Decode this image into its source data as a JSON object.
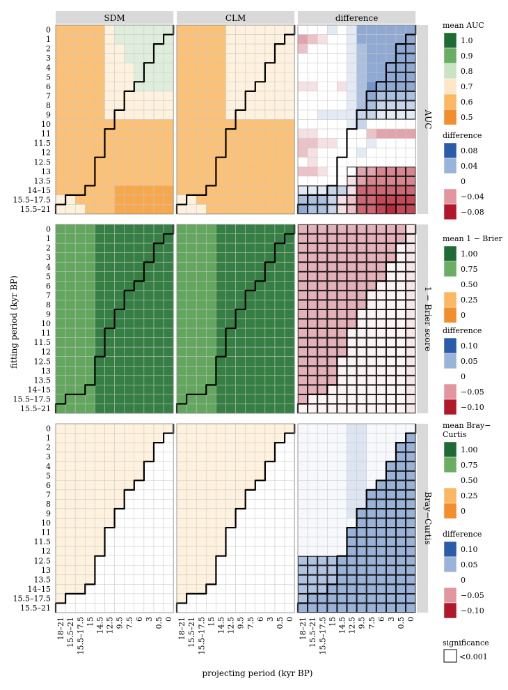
{
  "chart_data": {
    "type": "heatmap",
    "xlabel": "projecting period (kyr BP)",
    "ylabel": "fitting period (kyr BP)",
    "x_categories": [
      "18–21",
      "15.5–21",
      "15.5–17.5",
      "15",
      "14.5",
      "12.5",
      "9.5",
      "7.5",
      "6",
      "3",
      "0.5",
      "0"
    ],
    "y_categories": [
      "0",
      "1",
      "2",
      "3",
      "4",
      "5",
      "6",
      "7",
      "8",
      "9",
      "10",
      "11",
      "11.5",
      "12",
      "12.5",
      "13",
      "13.5",
      "14–15",
      "15.5–17.5",
      "15.5–21"
    ],
    "columns": [
      "SDM",
      "CLM",
      "difference"
    ],
    "rows": [
      {
        "label": "AUC",
        "mean_title": "mean AUC",
        "mean_ticks": [
          "1.0",
          "0.9",
          "0.8",
          "0.7",
          "0.6",
          "0.5"
        ],
        "diff_ticks": [
          "0.08",
          "0.04",
          "0",
          "−0.04",
          "−0.08"
        ]
      },
      {
        "label": "1 − Brier score",
        "mean_title": "mean 1 − Brier",
        "mean_ticks": [
          "1.00",
          "0.75",
          "0.50",
          "0.25",
          "0"
        ],
        "diff_ticks": [
          "0.10",
          "0.05",
          "0",
          "−0.05",
          "−0.10"
        ]
      },
      {
        "label": "Bray−Curtis",
        "mean_title": "mean Bray−\nCurtis",
        "mean_ticks": [
          "1.00",
          "0.75",
          "0.50",
          "0.25",
          "0"
        ],
        "diff_ticks": [
          "0.10",
          "0.05",
          "0",
          "−0.05",
          "−0.10"
        ]
      }
    ],
    "significance": {
      "title": "significance",
      "label": "<0.001"
    },
    "diagonal_boundary": [
      12,
      11,
      10,
      10,
      9,
      9,
      8,
      7,
      7,
      6,
      6,
      5,
      5,
      5,
      4,
      4,
      4,
      3,
      1,
      0
    ],
    "values": {
      "AUC": {
        "SDM": [
          [
            0.6,
            0.6,
            0.6,
            0.6,
            0.6,
            0.7,
            0.8,
            0.8,
            0.8,
            0.8,
            0.8,
            0.8
          ],
          [
            0.6,
            0.6,
            0.6,
            0.6,
            0.6,
            0.7,
            0.8,
            0.8,
            0.8,
            0.8,
            0.8,
            0.8
          ],
          [
            0.6,
            0.6,
            0.6,
            0.6,
            0.6,
            0.7,
            0.7,
            0.8,
            0.8,
            0.8,
            0.8,
            0.8
          ],
          [
            0.6,
            0.6,
            0.6,
            0.6,
            0.6,
            0.7,
            0.7,
            0.8,
            0.8,
            0.8,
            0.8,
            0.8
          ],
          [
            0.6,
            0.6,
            0.6,
            0.6,
            0.6,
            0.7,
            0.7,
            0.7,
            0.8,
            0.8,
            0.8,
            0.8
          ],
          [
            0.6,
            0.6,
            0.6,
            0.6,
            0.6,
            0.7,
            0.7,
            0.7,
            0.8,
            0.8,
            0.8,
            0.8
          ],
          [
            0.6,
            0.6,
            0.6,
            0.6,
            0.6,
            0.7,
            0.7,
            0.7,
            0.8,
            0.8,
            0.8,
            0.8
          ],
          [
            0.6,
            0.6,
            0.6,
            0.6,
            0.6,
            0.7,
            0.7,
            0.7,
            0.7,
            0.7,
            0.7,
            0.7
          ],
          [
            0.6,
            0.6,
            0.6,
            0.6,
            0.6,
            0.7,
            0.7,
            0.7,
            0.7,
            0.7,
            0.7,
            0.7
          ],
          [
            0.6,
            0.6,
            0.6,
            0.6,
            0.6,
            0.7,
            0.7,
            0.7,
            0.7,
            0.7,
            0.7,
            0.7
          ],
          [
            0.6,
            0.6,
            0.6,
            0.6,
            0.6,
            0.6,
            0.6,
            0.6,
            0.6,
            0.6,
            0.6,
            0.6
          ],
          [
            0.6,
            0.6,
            0.6,
            0.6,
            0.6,
            0.6,
            0.6,
            0.6,
            0.6,
            0.6,
            0.6,
            0.6
          ],
          [
            0.6,
            0.6,
            0.6,
            0.6,
            0.6,
            0.6,
            0.6,
            0.6,
            0.6,
            0.6,
            0.6,
            0.6
          ],
          [
            0.6,
            0.6,
            0.6,
            0.6,
            0.6,
            0.6,
            0.6,
            0.6,
            0.6,
            0.6,
            0.6,
            0.6
          ],
          [
            0.6,
            0.6,
            0.6,
            0.6,
            0.6,
            0.6,
            0.6,
            0.6,
            0.6,
            0.6,
            0.6,
            0.6
          ],
          [
            0.6,
            0.6,
            0.6,
            0.6,
            0.6,
            0.6,
            0.6,
            0.6,
            0.6,
            0.6,
            0.6,
            0.6
          ],
          [
            0.6,
            0.6,
            0.6,
            0.6,
            0.6,
            0.6,
            0.6,
            0.6,
            0.6,
            0.6,
            0.6,
            0.6
          ],
          [
            0.6,
            0.6,
            0.6,
            0.6,
            0.6,
            0.6,
            0.55,
            0.55,
            0.55,
            0.55,
            0.55,
            0.55
          ],
          [
            0.7,
            0.7,
            0.6,
            0.6,
            0.6,
            0.6,
            0.55,
            0.55,
            0.55,
            0.55,
            0.55,
            0.55
          ],
          [
            0.7,
            0.7,
            0.7,
            0.6,
            0.6,
            0.6,
            0.55,
            0.55,
            0.55,
            0.55,
            0.55,
            0.55
          ]
        ],
        "CLM": [
          [
            0.6,
            0.6,
            0.6,
            0.6,
            0.6,
            0.7,
            0.7,
            0.7,
            0.7,
            0.7,
            0.7,
            0.7
          ],
          [
            0.6,
            0.6,
            0.6,
            0.6,
            0.6,
            0.7,
            0.7,
            0.7,
            0.7,
            0.7,
            0.7,
            0.7
          ],
          [
            0.6,
            0.6,
            0.6,
            0.6,
            0.6,
            0.7,
            0.7,
            0.7,
            0.7,
            0.7,
            0.7,
            0.7
          ],
          [
            0.6,
            0.6,
            0.6,
            0.6,
            0.6,
            0.7,
            0.7,
            0.7,
            0.7,
            0.7,
            0.7,
            0.7
          ],
          [
            0.6,
            0.6,
            0.6,
            0.6,
            0.6,
            0.7,
            0.7,
            0.7,
            0.7,
            0.7,
            0.7,
            0.7
          ],
          [
            0.6,
            0.6,
            0.6,
            0.6,
            0.6,
            0.7,
            0.7,
            0.7,
            0.7,
            0.7,
            0.7,
            0.7
          ],
          [
            0.6,
            0.6,
            0.6,
            0.6,
            0.6,
            0.7,
            0.7,
            0.7,
            0.7,
            0.7,
            0.7,
            0.7
          ],
          [
            0.6,
            0.6,
            0.6,
            0.6,
            0.6,
            0.7,
            0.7,
            0.7,
            0.7,
            0.7,
            0.7,
            0.7
          ],
          [
            0.6,
            0.6,
            0.6,
            0.6,
            0.6,
            0.7,
            0.7,
            0.7,
            0.7,
            0.7,
            0.7,
            0.7
          ],
          [
            0.6,
            0.6,
            0.6,
            0.6,
            0.6,
            0.7,
            0.7,
            0.7,
            0.7,
            0.7,
            0.7,
            0.7
          ],
          [
            0.6,
            0.6,
            0.6,
            0.6,
            0.6,
            0.6,
            0.6,
            0.6,
            0.6,
            0.6,
            0.6,
            0.6
          ],
          [
            0.6,
            0.6,
            0.6,
            0.6,
            0.6,
            0.6,
            0.6,
            0.6,
            0.6,
            0.6,
            0.6,
            0.6
          ],
          [
            0.6,
            0.6,
            0.6,
            0.6,
            0.6,
            0.6,
            0.6,
            0.6,
            0.6,
            0.6,
            0.6,
            0.6
          ],
          [
            0.6,
            0.6,
            0.6,
            0.6,
            0.6,
            0.6,
            0.6,
            0.6,
            0.6,
            0.6,
            0.6,
            0.6
          ],
          [
            0.6,
            0.6,
            0.6,
            0.6,
            0.6,
            0.6,
            0.6,
            0.6,
            0.6,
            0.6,
            0.6,
            0.6
          ],
          [
            0.6,
            0.6,
            0.6,
            0.6,
            0.6,
            0.6,
            0.6,
            0.6,
            0.6,
            0.6,
            0.6,
            0.6
          ],
          [
            0.6,
            0.6,
            0.6,
            0.6,
            0.6,
            0.6,
            0.6,
            0.6,
            0.6,
            0.6,
            0.6,
            0.6
          ],
          [
            0.6,
            0.6,
            0.6,
            0.6,
            0.6,
            0.6,
            0.6,
            0.6,
            0.6,
            0.6,
            0.6,
            0.6
          ],
          [
            0.7,
            0.7,
            0.6,
            0.6,
            0.6,
            0.6,
            0.6,
            0.6,
            0.6,
            0.6,
            0.6,
            0.6
          ],
          [
            0.7,
            0.7,
            0.7,
            0.6,
            0.6,
            0.6,
            0.6,
            0.6,
            0.6,
            0.6,
            0.6,
            0.6
          ]
        ],
        "difference": [
          [
            0,
            0,
            0,
            0.01,
            0,
            0.01,
            0.04,
            0.04,
            0.04,
            0.04,
            0.04,
            0.04
          ],
          [
            -0.03,
            -0.02,
            -0.01,
            0,
            0,
            0.01,
            0.04,
            0.04,
            0.04,
            0.04,
            0.04,
            0.04
          ],
          [
            -0.02,
            0,
            0,
            0,
            0,
            0.01,
            0.03,
            0.04,
            0.04,
            0.04,
            0.04,
            0.04
          ],
          [
            0,
            0,
            0,
            0,
            0,
            0.01,
            0.03,
            0.04,
            0.04,
            0.04,
            0.04,
            0.04
          ],
          [
            0,
            0,
            0,
            0,
            0,
            0.01,
            0.03,
            0.04,
            0.04,
            0.04,
            0.04,
            0.04
          ],
          [
            0,
            0,
            0,
            0,
            0,
            0.01,
            0.03,
            0.04,
            0.04,
            0.04,
            0.04,
            0.04
          ],
          [
            -0.01,
            -0.01,
            0,
            0,
            -0.01,
            0.01,
            0.03,
            0.05,
            0.04,
            0.04,
            0.04,
            0.04
          ],
          [
            0,
            0,
            0,
            0,
            0,
            0.01,
            0.03,
            0.04,
            0.03,
            0.03,
            0.03,
            0.03
          ],
          [
            0,
            0,
            0,
            0,
            0,
            0.01,
            0.03,
            0.03,
            0.02,
            0.02,
            0.02,
            0.02
          ],
          [
            0,
            0,
            0.01,
            0.01,
            0.01,
            0.01,
            0.02,
            0.02,
            0.01,
            0.01,
            0.01,
            0.01
          ],
          [
            0,
            0,
            0,
            0,
            0,
            0.01,
            0.02,
            0,
            0,
            0,
            0,
            0
          ],
          [
            -0.01,
            -0.01,
            0,
            0,
            0,
            0,
            0,
            -0.02,
            -0.03,
            -0.03,
            -0.03,
            -0.03
          ],
          [
            -0.02,
            -0.02,
            -0.01,
            -0.01,
            0,
            0,
            0,
            0.01,
            0,
            0,
            0,
            0
          ],
          [
            -0.02,
            -0.01,
            0,
            0,
            0,
            0,
            0.01,
            0,
            0,
            0,
            0,
            0
          ],
          [
            0,
            -0.01,
            0,
            0,
            0,
            0,
            0,
            0,
            0,
            0,
            0,
            0
          ],
          [
            -0.02,
            -0.02,
            -0.01,
            0,
            0,
            0,
            -0.03,
            -0.03,
            -0.04,
            -0.04,
            -0.04,
            -0.04
          ],
          [
            0,
            0,
            0,
            0,
            0,
            -0.01,
            -0.03,
            -0.04,
            -0.04,
            -0.04,
            -0.04,
            -0.04
          ],
          [
            0.01,
            0.01,
            0.01,
            0.02,
            0.02,
            -0.01,
            -0.05,
            -0.05,
            -0.05,
            -0.05,
            -0.05,
            -0.05
          ],
          [
            0.03,
            0.03,
            0.03,
            0.02,
            -0.01,
            -0.02,
            -0.05,
            -0.05,
            -0.06,
            -0.06,
            -0.06,
            -0.06
          ],
          [
            0.04,
            0.03,
            0.03,
            0.02,
            -0.01,
            -0.02,
            -0.05,
            -0.05,
            -0.06,
            -0.07,
            -0.06,
            -0.06
          ]
        ]
      },
      "1 − Brier score": {
        "SDM": "0.85 for projecting periods 18–21 to 15 (columns 1–4), 0.95 for 14.5 to 0 (columns 5–12), on every fitting row",
        "CLM": "same pattern as SDM: 0.85 then 0.95",
        "difference": "about −0.03 for columns 1–11 on every fitting row; column 12 about −0.01; cells on and right of the diagonal boundary near 0"
      },
      "Bray−Curtis": {
        "SDM": "0.40 everywhere except cells right of the diagonal boundary (0.50)",
        "CLM": "0.40 everywhere except cells right of the diagonal boundary (0.50)",
        "difference": "about +0.03 to +0.05 right of the boundary and in the lower-left corner; otherwise near 0"
      }
    }
  }
}
